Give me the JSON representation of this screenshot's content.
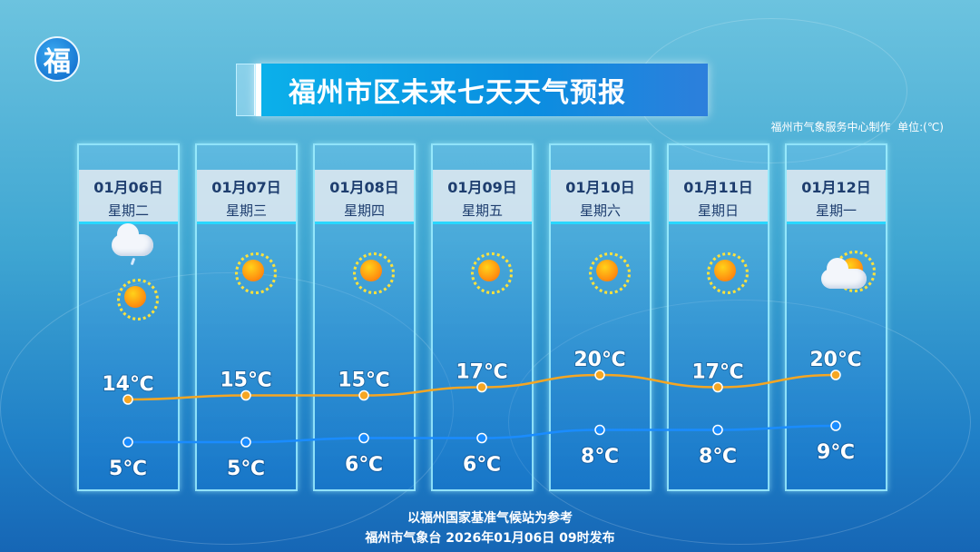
{
  "title": "福州市区未来七天天气预报",
  "credit": "福州市气象服务中心制作",
  "unit": "单位:(℃)",
  "logo": "福",
  "footer": {
    "line1": "以福州国家基准气候站为参考",
    "line2": "福州市气象台  2026年01月06日  09时发布"
  },
  "colors": {
    "high_line": "#f5a623",
    "low_line": "#1a8cff",
    "title_bg": "#0a9ee5"
  },
  "days": [
    {
      "date": "01月06日",
      "weekday": "星期二",
      "icons": [
        "cloud-rain-icon",
        "sun-icon"
      ],
      "high_label": "14℃",
      "low_label": "5℃"
    },
    {
      "date": "01月07日",
      "weekday": "星期三",
      "icons": [
        "sun-icon"
      ],
      "high_label": "15℃",
      "low_label": "5℃"
    },
    {
      "date": "01月08日",
      "weekday": "星期四",
      "icons": [
        "sun-icon"
      ],
      "high_label": "15℃",
      "low_label": "6℃"
    },
    {
      "date": "01月09日",
      "weekday": "星期五",
      "icons": [
        "sun-icon"
      ],
      "high_label": "17℃",
      "low_label": "6℃"
    },
    {
      "date": "01月10日",
      "weekday": "星期六",
      "icons": [
        "sun-icon"
      ],
      "high_label": "20℃",
      "low_label": "8℃"
    },
    {
      "date": "01月11日",
      "weekday": "星期日",
      "icons": [
        "sun-icon"
      ],
      "high_label": "17℃",
      "low_label": "8℃"
    },
    {
      "date": "01月12日",
      "weekday": "星期一",
      "icons": [
        "partly-cloudy-icon"
      ],
      "high_label": "20℃",
      "low_label": "9℃"
    }
  ],
  "chart_data": {
    "type": "line",
    "categories": [
      "01月06日",
      "01月07日",
      "01月08日",
      "01月09日",
      "01月10日",
      "01月11日",
      "01月12日"
    ],
    "series": [
      {
        "name": "high",
        "values": [
          14,
          15,
          15,
          17,
          20,
          17,
          20
        ]
      },
      {
        "name": "low",
        "values": [
          5,
          5,
          6,
          6,
          8,
          8,
          9
        ]
      }
    ],
    "unit": "℃",
    "grid": false
  }
}
